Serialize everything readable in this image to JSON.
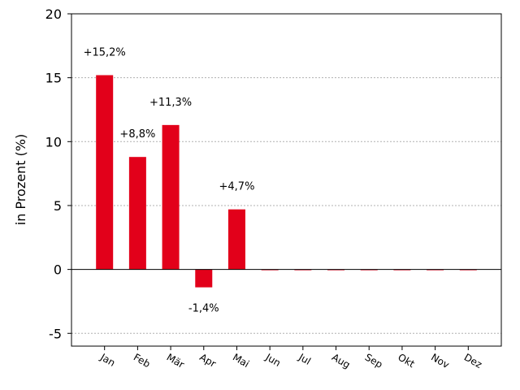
{
  "chart_data": {
    "type": "bar",
    "title": "",
    "xlabel": "",
    "ylabel": "in Prozent (%)",
    "categories": [
      "Jan",
      "Feb",
      "Mär",
      "Apr",
      "Mai",
      "Jun",
      "Jul",
      "Aug",
      "Sep",
      "Okt",
      "Nov",
      "Dez"
    ],
    "values": [
      15.2,
      8.8,
      11.3,
      -1.4,
      4.7,
      0,
      0,
      0,
      0,
      0,
      0,
      0
    ],
    "data_labels": [
      "+15,2%",
      "+8,8%",
      "+11,3%",
      "-1,4%",
      "+4,7%",
      "",
      "",
      "",
      "",
      "",
      "",
      ""
    ],
    "ylim": [
      -6,
      20
    ],
    "yticks": [
      -5,
      0,
      5,
      10,
      15,
      20
    ],
    "ytick_labels": [
      "-5",
      "0",
      "5",
      "10",
      "15",
      "20"
    ],
    "grid": "horizontal dotted",
    "bar_color": "#e2001a",
    "zero_line_color": "#000000",
    "grid_color": "#b0b0b0"
  }
}
